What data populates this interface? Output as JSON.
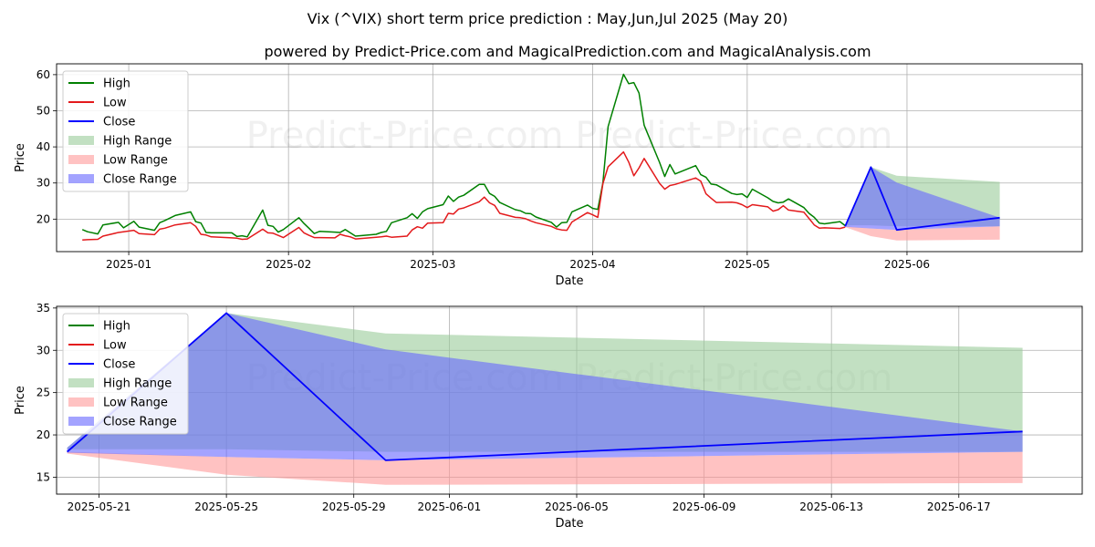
{
  "title": "Vix (^VIX) short term price prediction : May,Jun,Jul 2025 (May 20)",
  "subtitle": "powered by Predict-Price.com and MagicalPrediction.com and MagicalAnalysis.com",
  "watermark": "Predict-Price.com",
  "colors": {
    "high": "#008000",
    "low": "#e31a1c",
    "close": "#0000ff",
    "high_range": "#99cc99",
    "low_range": "#ff9999",
    "close_range": "#6666ff"
  },
  "legend": [
    "High",
    "Low",
    "Close",
    "High Range",
    "Low Range",
    "Close Range"
  ],
  "chart_data": [
    {
      "type": "line",
      "xlabel": "Date",
      "ylabel": "Price",
      "xlim": [
        "2024-12-18",
        "2025-07-05"
      ],
      "ylim": [
        11,
        63
      ],
      "x_ticks": [
        "2025-01",
        "2025-02",
        "2025-03",
        "2025-04",
        "2025-05",
        "2025-06"
      ],
      "y_ticks": [
        20,
        30,
        40,
        50,
        60
      ],
      "grid": true,
      "legend_position": "upper-left",
      "history_series": [
        {
          "name": "High",
          "x": [
            "2024-12-23",
            "2024-12-24",
            "2024-12-26",
            "2024-12-27",
            "2024-12-30",
            "2024-12-31",
            "2025-01-02",
            "2025-01-03",
            "2025-01-06",
            "2025-01-07",
            "2025-01-08",
            "2025-01-10",
            "2025-01-13",
            "2025-01-14",
            "2025-01-15",
            "2025-01-16",
            "2025-01-17",
            "2025-01-21",
            "2025-01-22",
            "2025-01-23",
            "2025-01-24",
            "2025-01-27",
            "2025-01-28",
            "2025-01-29",
            "2025-01-30",
            "2025-01-31",
            "2025-02-03",
            "2025-02-04",
            "2025-02-05",
            "2025-02-06",
            "2025-02-07",
            "2025-02-10",
            "2025-02-11",
            "2025-02-12",
            "2025-02-13",
            "2025-02-14",
            "2025-02-18",
            "2025-02-19",
            "2025-02-20",
            "2025-02-21",
            "2025-02-24",
            "2025-02-25",
            "2025-02-26",
            "2025-02-27",
            "2025-02-28",
            "2025-03-03",
            "2025-03-04",
            "2025-03-05",
            "2025-03-06",
            "2025-03-07",
            "2025-03-10",
            "2025-03-11",
            "2025-03-12",
            "2025-03-13",
            "2025-03-14",
            "2025-03-17",
            "2025-03-18",
            "2025-03-19",
            "2025-03-20",
            "2025-03-21",
            "2025-03-24",
            "2025-03-25",
            "2025-03-26",
            "2025-03-27",
            "2025-03-28",
            "2025-03-31",
            "2025-04-01",
            "2025-04-02",
            "2025-04-03",
            "2025-04-04",
            "2025-04-07",
            "2025-04-08",
            "2025-04-09",
            "2025-04-10",
            "2025-04-11",
            "2025-04-14",
            "2025-04-15",
            "2025-04-16",
            "2025-04-17",
            "2025-04-21",
            "2025-04-22",
            "2025-04-23",
            "2025-04-24",
            "2025-04-25",
            "2025-04-28",
            "2025-04-29",
            "2025-04-30",
            "2025-05-01",
            "2025-05-02",
            "2025-05-05",
            "2025-05-06",
            "2025-05-07",
            "2025-05-08",
            "2025-05-09",
            "2025-05-12",
            "2025-05-13",
            "2025-05-14",
            "2025-05-15",
            "2025-05-16",
            "2025-05-19",
            "2025-05-20"
          ],
          "values": [
            17.1,
            16.5,
            15.9,
            18.4,
            19.1,
            17.6,
            19.4,
            17.8,
            16.9,
            19.0,
            19.6,
            21.0,
            22.0,
            19.3,
            18.9,
            16.3,
            16.2,
            16.2,
            15.2,
            15.4,
            15.1,
            22.5,
            18.3,
            18.0,
            16.4,
            17.1,
            20.4,
            18.8,
            17.4,
            16.0,
            16.6,
            16.4,
            16.3,
            17.1,
            16.2,
            15.3,
            15.8,
            16.3,
            16.6,
            19.0,
            20.4,
            21.5,
            20.2,
            22.0,
            22.9,
            24.0,
            26.4,
            24.9,
            26.1,
            26.6,
            29.6,
            29.6,
            27.1,
            26.3,
            24.6,
            22.6,
            22.3,
            21.6,
            21.5,
            20.6,
            19.1,
            17.8,
            19.0,
            19.1,
            22.0,
            23.9,
            23.0,
            22.7,
            30.0,
            45.6,
            60.1,
            57.5,
            57.8,
            54.9,
            46.0,
            35.7,
            31.8,
            35.1,
            32.5,
            34.8,
            32.3,
            31.6,
            29.7,
            29.5,
            27.1,
            26.8,
            27.0,
            26.0,
            28.3,
            25.9,
            24.9,
            24.5,
            24.7,
            25.6,
            23.2,
            21.6,
            20.5,
            18.9,
            18.7,
            19.3,
            18.2
          ]
        },
        {
          "name": "Low",
          "x": [
            "2024-12-23",
            "2024-12-24",
            "2024-12-26",
            "2024-12-27",
            "2024-12-30",
            "2024-12-31",
            "2025-01-02",
            "2025-01-03",
            "2025-01-06",
            "2025-01-07",
            "2025-01-08",
            "2025-01-10",
            "2025-01-13",
            "2025-01-14",
            "2025-01-15",
            "2025-01-16",
            "2025-01-17",
            "2025-01-21",
            "2025-01-22",
            "2025-01-23",
            "2025-01-24",
            "2025-01-27",
            "2025-01-28",
            "2025-01-29",
            "2025-01-30",
            "2025-01-31",
            "2025-02-03",
            "2025-02-04",
            "2025-02-05",
            "2025-02-06",
            "2025-02-07",
            "2025-02-10",
            "2025-02-11",
            "2025-02-12",
            "2025-02-13",
            "2025-02-14",
            "2025-02-18",
            "2025-02-19",
            "2025-02-20",
            "2025-02-21",
            "2025-02-24",
            "2025-02-25",
            "2025-02-26",
            "2025-02-27",
            "2025-02-28",
            "2025-03-03",
            "2025-03-04",
            "2025-03-05",
            "2025-03-06",
            "2025-03-07",
            "2025-03-10",
            "2025-03-11",
            "2025-03-12",
            "2025-03-13",
            "2025-03-14",
            "2025-03-17",
            "2025-03-18",
            "2025-03-19",
            "2025-03-20",
            "2025-03-21",
            "2025-03-24",
            "2025-03-25",
            "2025-03-26",
            "2025-03-27",
            "2025-03-28",
            "2025-03-31",
            "2025-04-01",
            "2025-04-02",
            "2025-04-03",
            "2025-04-04",
            "2025-04-07",
            "2025-04-08",
            "2025-04-09",
            "2025-04-10",
            "2025-04-11",
            "2025-04-14",
            "2025-04-15",
            "2025-04-16",
            "2025-04-17",
            "2025-04-21",
            "2025-04-22",
            "2025-04-23",
            "2025-04-24",
            "2025-04-25",
            "2025-04-28",
            "2025-04-29",
            "2025-04-30",
            "2025-05-01",
            "2025-05-02",
            "2025-05-05",
            "2025-05-06",
            "2025-05-07",
            "2025-05-08",
            "2025-05-09",
            "2025-05-12",
            "2025-05-13",
            "2025-05-14",
            "2025-05-15",
            "2025-05-16",
            "2025-05-19",
            "2025-05-20"
          ],
          "values": [
            14.2,
            14.3,
            14.4,
            15.3,
            16.3,
            16.5,
            16.9,
            16.0,
            15.7,
            17.2,
            17.5,
            18.4,
            19.0,
            18.0,
            15.8,
            15.6,
            15.1,
            14.8,
            14.7,
            14.4,
            14.5,
            17.2,
            16.2,
            16.1,
            15.5,
            14.9,
            17.7,
            16.2,
            15.5,
            14.9,
            14.9,
            14.8,
            15.8,
            15.4,
            15.1,
            14.5,
            15.0,
            15.1,
            15.3,
            15.0,
            15.3,
            17.0,
            17.9,
            17.5,
            18.9,
            19.0,
            21.6,
            21.4,
            22.8,
            23.1,
            24.8,
            26.1,
            24.5,
            23.8,
            21.6,
            20.5,
            20.4,
            20.1,
            19.5,
            19.0,
            18.0,
            17.3,
            17.0,
            16.9,
            19.2,
            21.8,
            21.2,
            20.5,
            29.8,
            34.5,
            38.6,
            35.8,
            32.0,
            34.2,
            36.8,
            29.9,
            28.3,
            29.3,
            29.6,
            31.4,
            30.5,
            27.0,
            25.8,
            24.6,
            24.7,
            24.5,
            24.0,
            23.2,
            24.0,
            23.4,
            22.2,
            22.6,
            23.7,
            22.5,
            21.9,
            20.2,
            18.4,
            17.5,
            17.6,
            17.4,
            17.8
          ]
        }
      ]
    },
    {
      "type": "line",
      "xlabel": "Date",
      "ylabel": "Price",
      "xlim": [
        "2025-05-19T16:00",
        "2025-06-20T21:00"
      ],
      "ylim": [
        13,
        35.2
      ],
      "x_ticks": [
        "2025-05-21",
        "2025-05-25",
        "2025-05-29",
        "2025-06-01",
        "2025-06-05",
        "2025-06-09",
        "2025-06-13",
        "2025-06-17"
      ],
      "y_ticks": [
        15,
        20,
        25,
        30,
        35
      ],
      "grid": true,
      "legend_position": "upper-left",
      "forecast_x": [
        "2025-05-20",
        "2025-05-25",
        "2025-05-30",
        "2025-06-19"
      ],
      "high_range": {
        "upper": [
          18.5,
          34.4,
          32.0,
          30.3
        ],
        "lower": [
          18.3,
          18.3,
          18.0,
          18.0
        ]
      },
      "low_range": {
        "upper": [
          18.0,
          17.4,
          17.0,
          18.0
        ],
        "lower": [
          17.8,
          15.3,
          14.1,
          14.3
        ]
      },
      "close_range": {
        "upper": [
          18.5,
          34.4,
          30.1,
          20.4
        ],
        "lower": [
          17.9,
          17.4,
          17.0,
          18.0
        ]
      },
      "close_series": {
        "name": "Close",
        "values": [
          18.0,
          34.4,
          17.0,
          20.4
        ]
      }
    }
  ]
}
